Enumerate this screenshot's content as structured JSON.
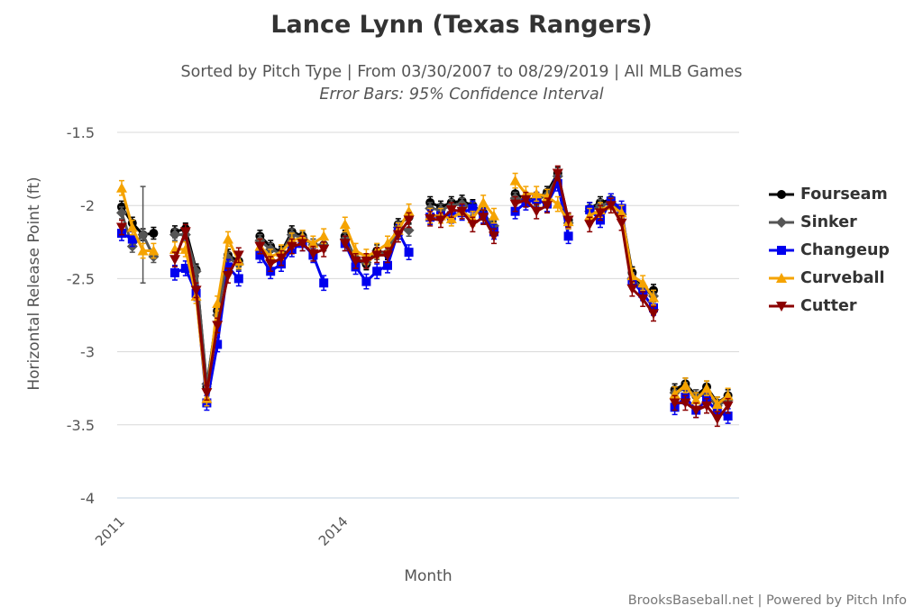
{
  "chart_data": {
    "type": "line",
    "title": "Lance Lynn (Texas Rangers)",
    "subtitle": "Sorted by Pitch Type | From 03/30/2007 to 08/29/2019 | All MLB Games",
    "subtitle2": "Error Bars: 95% Confidence Interval",
    "xlabel": "Month",
    "ylabel": "Horizontal Release Point (ft)",
    "ylim": [
      -4,
      -1.5
    ],
    "yticks": [
      "-1.5",
      "-2",
      "-2.5",
      "-3",
      "-3.5",
      "-4"
    ],
    "grid": true,
    "legend": "right",
    "x": [
      "2011-06",
      "2011-07",
      "2011-08",
      "2011-09",
      null,
      "2012-04",
      "2012-05",
      "2012-06",
      "2012-07",
      "2012-08",
      "2012-09",
      "2012-10",
      null,
      "2013-04",
      "2013-05",
      "2013-06",
      "2013-07",
      "2013-08",
      "2013-09",
      "2013-10",
      null,
      "2014-04",
      "2014-05",
      "2014-06",
      "2014-07",
      "2014-08",
      "2014-09",
      "2014-10",
      null,
      "2015-04",
      "2015-05",
      "2015-06",
      "2015-07",
      "2015-08",
      "2015-09",
      "2015-10",
      null,
      "2017-04",
      "2017-05",
      "2017-06",
      "2017-07",
      "2017-08",
      "2017-09",
      null,
      "2018-04",
      "2018-05",
      "2018-06",
      "2018-07",
      "2018-08",
      "2018-09",
      "2018-10",
      null,
      "2019-04",
      "2019-05",
      "2019-06",
      "2019-07",
      "2019-08",
      "2019-09"
    ],
    "xticks": [
      {
        "label": "2011",
        "x": "2011-06"
      },
      {
        "label": "2014",
        "x": "2014-04"
      }
    ],
    "series": [
      {
        "name": "Fourseam",
        "color": "#000000",
        "marker": "circle",
        "ci": 0.04,
        "values": [
          -2.01,
          -2.12,
          -2.2,
          -2.19,
          null,
          -2.18,
          -2.16,
          -2.44,
          -3.24,
          -2.72,
          -2.34,
          -2.38,
          null,
          -2.21,
          -2.28,
          -2.32,
          -2.18,
          -2.21,
          -2.27,
          -2.27,
          null,
          -2.21,
          -2.37,
          -2.4,
          -2.31,
          -2.33,
          -2.13,
          -2.08,
          null,
          -1.98,
          -2.01,
          -1.98,
          -1.97,
          -2.0,
          -2.05,
          -2.15,
          null,
          -1.92,
          -1.96,
          -1.95,
          -1.91,
          -1.78,
          -2.1,
          null,
          -2.02,
          -1.98,
          -1.96,
          -2.05,
          -2.46,
          -2.58,
          -2.58,
          null,
          -3.26,
          -3.22,
          -3.3,
          -3.24,
          -3.35,
          -3.3
        ]
      },
      {
        "name": "Sinker",
        "color": "#555555",
        "marker": "diamond",
        "ci": 0.04,
        "ci_large": {
          "x": "2011-08",
          "ci": 0.33
        },
        "values": [
          -2.05,
          -2.28,
          -2.2,
          -2.35,
          null,
          -2.2,
          -2.2,
          -2.45,
          -3.22,
          -2.75,
          -2.36,
          -2.4,
          null,
          -2.24,
          -2.3,
          -2.33,
          -2.2,
          -2.22,
          -2.27,
          -2.27,
          null,
          -2.23,
          -2.36,
          -2.39,
          -2.33,
          -2.32,
          -2.15,
          -2.17,
          null,
          -2.02,
          -2.03,
          -2.0,
          -1.99,
          -2.02,
          -2.06,
          -2.14,
          null,
          -1.95,
          -1.97,
          -1.96,
          -1.93,
          -1.8,
          -2.12,
          null,
          -2.04,
          -2.0,
          -1.98,
          -2.06,
          -2.5,
          -2.57,
          -2.62,
          null,
          -3.28,
          -3.25,
          -3.3,
          -3.3,
          -3.37,
          -3.33
        ]
      },
      {
        "name": "Changeup",
        "color": "#0000ee",
        "marker": "square",
        "ci": 0.05,
        "values": [
          -2.19,
          -2.23,
          null,
          null,
          null,
          -2.46,
          -2.43,
          -2.6,
          -3.35,
          -2.95,
          -2.42,
          -2.5,
          null,
          -2.34,
          -2.45,
          -2.4,
          -2.3,
          -2.26,
          -2.34,
          -2.53,
          null,
          -2.26,
          -2.42,
          -2.52,
          -2.45,
          -2.41,
          -2.18,
          -2.32,
          null,
          -2.08,
          -2.07,
          -2.07,
          -2.05,
          -2.02,
          -2.07,
          -2.18,
          null,
          -2.04,
          -1.98,
          -1.96,
          -1.99,
          -1.85,
          -2.21,
          null,
          -2.03,
          -2.1,
          -1.97,
          -2.02,
          -2.52,
          -2.6,
          -2.7,
          null,
          -3.38,
          -3.31,
          -3.4,
          -3.33,
          -3.41,
          -3.44
        ]
      },
      {
        "name": "Curveball",
        "color": "#f5a300",
        "marker": "triangle",
        "ci": 0.05,
        "values": [
          -1.88,
          -2.15,
          -2.31,
          -2.31,
          null,
          -2.3,
          -2.3,
          -2.62,
          -3.32,
          -2.67,
          -2.23,
          -2.38,
          null,
          -2.28,
          -2.35,
          -2.32,
          -2.24,
          -2.22,
          -2.26,
          -2.21,
          null,
          -2.13,
          -2.31,
          -2.35,
          -2.31,
          -2.26,
          -2.17,
          -2.04,
          null,
          -2.07,
          -2.07,
          -2.09,
          -2.04,
          -2.09,
          -1.98,
          -2.07,
          null,
          -1.83,
          -1.92,
          -1.92,
          -1.94,
          -1.99,
          -2.11,
          null,
          -2.07,
          -2.03,
          -2.0,
          -2.05,
          -2.48,
          -2.53,
          -2.63,
          null,
          -3.29,
          -3.23,
          -3.33,
          -3.25,
          -3.36,
          -3.3
        ]
      },
      {
        "name": "Cutter",
        "color": "#8b0000",
        "marker": "triangle-down",
        "ci": 0.05,
        "values": [
          -2.15,
          null,
          null,
          null,
          null,
          -2.37,
          -2.18,
          -2.58,
          -3.28,
          -2.82,
          -2.48,
          -2.34,
          null,
          -2.28,
          -2.4,
          -2.36,
          -2.28,
          -2.26,
          -2.33,
          -2.3,
          null,
          -2.26,
          -2.38,
          -2.38,
          -2.34,
          -2.34,
          -2.2,
          -2.1,
          null,
          -2.09,
          -2.1,
          -2.03,
          -2.04,
          -2.13,
          -2.08,
          -2.21,
          null,
          -1.99,
          -1.96,
          -2.04,
          -2.0,
          -1.78,
          -2.1,
          null,
          -2.13,
          -2.05,
          -2.0,
          -2.12,
          -2.57,
          -2.64,
          -2.74,
          null,
          -3.35,
          -3.35,
          -3.4,
          -3.37,
          -3.46,
          -3.37
        ]
      }
    ]
  },
  "credits": "BrooksBaseball.net | Powered by Pitch Info"
}
